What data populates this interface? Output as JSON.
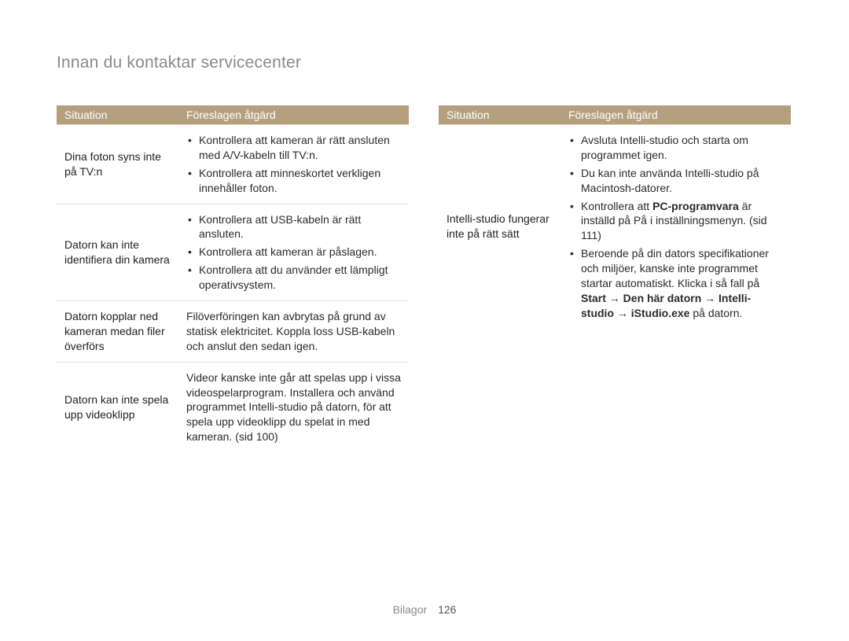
{
  "page_title": "Innan du kontaktar servicecenter",
  "footer": {
    "section": "Bilagor",
    "page_number": "126"
  },
  "colors": {
    "header_bg": "#b4a07e",
    "header_text": "#ffffff",
    "row_border": "#e9dfcf",
    "title_text": "#8a8a8a",
    "body_text": "#2b2b2b"
  },
  "typography": {
    "title_fontsize_pt": 16,
    "body_fontsize_pt": 10.5,
    "line_height": 1.35
  },
  "headers": {
    "situation": "Situation",
    "action": "Föreslagen åtgärd"
  },
  "left_table": {
    "rows": [
      {
        "situation": "Dina foton syns inte på TV:n",
        "bullets": [
          "Kontrollera att kameran är rätt ansluten med A/V-kabeln till TV:n.",
          "Kontrollera att minneskortet verkligen innehåller foton."
        ]
      },
      {
        "situation": "Datorn kan inte identifiera din kamera",
        "bullets": [
          "Kontrollera att USB-kabeln är rätt ansluten.",
          "Kontrollera att kameran är påslagen.",
          "Kontrollera att du använder ett lämpligt operativsystem."
        ]
      },
      {
        "situation": "Datorn kopplar ned kameran medan filer överförs",
        "text": "Filöverföringen kan avbrytas på grund av statisk elektricitet. Koppla loss USB-kabeln och anslut den sedan igen."
      },
      {
        "situation": "Datorn kan inte spela upp videoklipp",
        "text": "Videor kanske inte går att spelas upp i vissa videospelarprogram. Installera och använd programmet Intelli-studio på datorn, för att spela upp videoklipp du spelat in med kameran. (sid 100)"
      }
    ]
  },
  "right_table": {
    "rows": [
      {
        "situation": "Intelli-studio fungerar inte på rätt sätt",
        "bullets_rich": [
          [
            {
              "t": "Avsluta Intelli-studio och starta om programmet igen."
            }
          ],
          [
            {
              "t": "Du kan inte använda Intelli-studio på Macintosh-datorer."
            }
          ],
          [
            {
              "t": "Kontrollera att "
            },
            {
              "t": "PC-programvara",
              "b": true
            },
            {
              "t": " är inställd på På i inställningsmenyn. (sid 111)"
            }
          ],
          [
            {
              "t": "Beroende på din dators specifikationer och miljöer, kanske inte programmet startar automatiskt. Klicka i så fall på "
            },
            {
              "t": "Start → Den här datorn → Intelli-studio → iStudio.exe",
              "b": true
            },
            {
              "t": " på datorn."
            }
          ]
        ]
      }
    ]
  }
}
